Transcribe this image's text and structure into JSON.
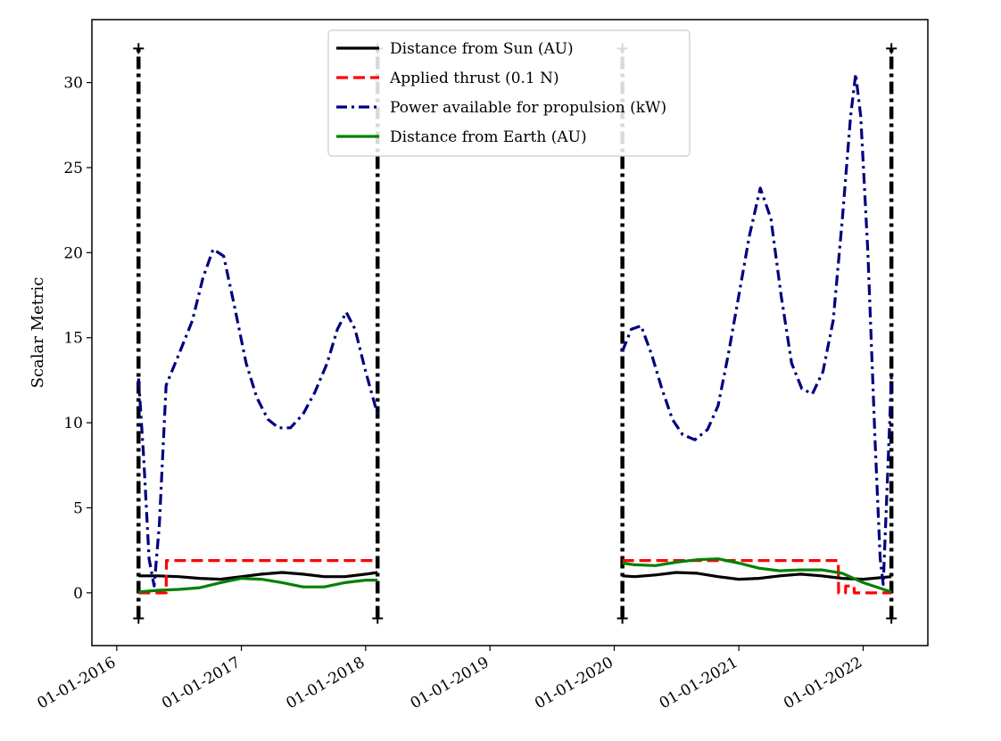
{
  "chart_data": {
    "type": "line",
    "ylabel": "Scalar Metric",
    "xlabel": "",
    "title": "",
    "grid": false,
    "legend_position": "top-center",
    "x_axis": {
      "type": "date",
      "range": [
        "2015-10-20",
        "2022-07-10"
      ],
      "ticks": [
        "2016-01-01",
        "2017-01-01",
        "2018-01-01",
        "2019-01-01",
        "2020-01-01",
        "2021-01-01",
        "2022-01-01"
      ],
      "tick_labels": [
        "01-01-2016",
        "01-01-2017",
        "01-01-2018",
        "01-01-2019",
        "01-01-2020",
        "01-01-2021",
        "01-01-2022"
      ]
    },
    "y_axis": {
      "range": [
        -3.1,
        33.7
      ],
      "ticks": [
        0,
        5,
        10,
        15,
        20,
        25,
        30
      ],
      "tick_labels": [
        "0",
        "5",
        "10",
        "15",
        "20",
        "25",
        "30"
      ]
    },
    "series": [
      {
        "name": "Distance from Sun (AU)",
        "color": "#000000",
        "style": "solid",
        "segments": [
          [
            [
              "2016-03-05",
              1.0
            ],
            [
              "2016-05-01",
              1.0
            ],
            [
              "2016-07-01",
              0.95
            ],
            [
              "2016-09-01",
              0.85
            ],
            [
              "2016-11-01",
              0.8
            ],
            [
              "2017-01-01",
              0.95
            ],
            [
              "2017-03-01",
              1.1
            ],
            [
              "2017-05-01",
              1.2
            ],
            [
              "2017-07-01",
              1.1
            ],
            [
              "2017-09-01",
              0.95
            ],
            [
              "2017-11-01",
              0.95
            ],
            [
              "2018-01-01",
              1.1
            ],
            [
              "2018-02-05",
              1.2
            ]
          ],
          [
            [
              "2020-01-25",
              1.0
            ],
            [
              "2020-03-01",
              0.95
            ],
            [
              "2020-05-01",
              1.05
            ],
            [
              "2020-07-01",
              1.2
            ],
            [
              "2020-09-01",
              1.15
            ],
            [
              "2020-11-01",
              0.95
            ],
            [
              "2021-01-01",
              0.8
            ],
            [
              "2021-03-01",
              0.85
            ],
            [
              "2021-05-01",
              1.0
            ],
            [
              "2021-07-01",
              1.1
            ],
            [
              "2021-09-01",
              1.0
            ],
            [
              "2021-11-01",
              0.85
            ],
            [
              "2022-01-01",
              0.8
            ],
            [
              "2022-03-25",
              0.95
            ]
          ]
        ]
      },
      {
        "name": "Applied thrust (0.1 N)",
        "color": "#ff0000",
        "style": "dashed",
        "segments": [
          [
            [
              "2016-03-05",
              0.0
            ],
            [
              "2016-05-25",
              0.0
            ],
            [
              "2016-05-26",
              1.9
            ],
            [
              "2018-02-05",
              1.9
            ]
          ],
          [
            [
              "2020-01-25",
              1.9
            ],
            [
              "2021-10-20",
              1.9
            ],
            [
              "2021-10-21",
              0.0
            ],
            [
              "2021-11-10",
              0.0
            ],
            [
              "2021-11-11",
              0.4
            ],
            [
              "2021-12-05",
              0.4
            ],
            [
              "2021-12-06",
              0.0
            ],
            [
              "2022-03-25",
              0.0
            ]
          ]
        ]
      },
      {
        "name": "Power available for propulsion (kW)",
        "color": "#000080",
        "style": "dashdot",
        "segments": [
          [
            [
              "2016-03-05",
              12.6
            ],
            [
              "2016-03-20",
              8.0
            ],
            [
              "2016-04-05",
              2.0
            ],
            [
              "2016-04-20",
              0.4
            ],
            [
              "2016-05-05",
              4.0
            ],
            [
              "2016-05-25",
              12.2
            ],
            [
              "2016-07-01",
              14.0
            ],
            [
              "2016-08-10",
              16.0
            ],
            [
              "2016-09-10",
              18.5
            ],
            [
              "2016-10-10",
              20.2
            ],
            [
              "2016-11-10",
              19.8
            ],
            [
              "2016-12-10",
              17.0
            ],
            [
              "2017-01-15",
              13.5
            ],
            [
              "2017-02-15",
              11.5
            ],
            [
              "2017-03-20",
              10.2
            ],
            [
              "2017-04-20",
              9.7
            ],
            [
              "2017-05-25",
              9.7
            ],
            [
              "2017-07-01",
              10.5
            ],
            [
              "2017-08-05",
              11.8
            ],
            [
              "2017-09-10",
              13.5
            ],
            [
              "2017-10-10",
              15.5
            ],
            [
              "2017-11-05",
              16.5
            ],
            [
              "2017-12-01",
              15.5
            ],
            [
              "2018-01-01",
              13.0
            ],
            [
              "2018-02-05",
              10.5
            ]
          ],
          [
            [
              "2020-01-25",
              14.2
            ],
            [
              "2020-02-20",
              15.5
            ],
            [
              "2020-03-20",
              15.7
            ],
            [
              "2020-04-20",
              14.0
            ],
            [
              "2020-05-20",
              12.0
            ],
            [
              "2020-06-20",
              10.2
            ],
            [
              "2020-07-20",
              9.3
            ],
            [
              "2020-08-25",
              9.0
            ],
            [
              "2020-10-01",
              9.6
            ],
            [
              "2020-11-01",
              11.0
            ],
            [
              "2020-12-01",
              14.0
            ],
            [
              "2021-01-01",
              17.5
            ],
            [
              "2021-02-01",
              21.0
            ],
            [
              "2021-03-05",
              23.8
            ],
            [
              "2021-04-05",
              22.0
            ],
            [
              "2021-05-05",
              17.5
            ],
            [
              "2021-06-05",
              13.5
            ],
            [
              "2021-07-05",
              12.0
            ],
            [
              "2021-08-05",
              11.7
            ],
            [
              "2021-09-05",
              13.0
            ],
            [
              "2021-10-05",
              16.0
            ],
            [
              "2021-11-01",
              22.0
            ],
            [
              "2021-11-25",
              28.0
            ],
            [
              "2021-12-10",
              30.5
            ],
            [
              "2021-12-25",
              28.0
            ],
            [
              "2022-01-15",
              20.0
            ],
            [
              "2022-02-05",
              9.0
            ],
            [
              "2022-02-20",
              2.0
            ],
            [
              "2022-03-01",
              0.5
            ],
            [
              "2022-03-12",
              6.0
            ],
            [
              "2022-03-25",
              12.7
            ]
          ]
        ]
      },
      {
        "name": "Distance from Earth (AU)",
        "color": "#008000",
        "style": "solid",
        "segments": [
          [
            [
              "2016-03-05",
              0.05
            ],
            [
              "2016-05-01",
              0.15
            ],
            [
              "2016-07-01",
              0.2
            ],
            [
              "2016-09-01",
              0.3
            ],
            [
              "2016-11-01",
              0.6
            ],
            [
              "2017-01-01",
              0.85
            ],
            [
              "2017-03-01",
              0.8
            ],
            [
              "2017-05-01",
              0.6
            ],
            [
              "2017-07-01",
              0.35
            ],
            [
              "2017-09-01",
              0.35
            ],
            [
              "2017-11-01",
              0.6
            ],
            [
              "2018-01-01",
              0.75
            ],
            [
              "2018-02-05",
              0.75
            ]
          ],
          [
            [
              "2020-01-25",
              1.75
            ],
            [
              "2020-03-01",
              1.65
            ],
            [
              "2020-05-01",
              1.6
            ],
            [
              "2020-07-01",
              1.8
            ],
            [
              "2020-09-01",
              1.95
            ],
            [
              "2020-11-01",
              2.0
            ],
            [
              "2021-01-01",
              1.75
            ],
            [
              "2021-03-01",
              1.45
            ],
            [
              "2021-05-01",
              1.3
            ],
            [
              "2021-07-01",
              1.35
            ],
            [
              "2021-09-01",
              1.35
            ],
            [
              "2021-11-01",
              1.15
            ],
            [
              "2022-01-01",
              0.6
            ],
            [
              "2022-03-25",
              0.05
            ]
          ]
        ]
      }
    ],
    "vertical_markers": [
      {
        "x": "2016-03-05",
        "ymin": -1.5,
        "ymax": 32.0,
        "color": "#000000",
        "style": "dashdot"
      },
      {
        "x": "2018-02-05",
        "ymin": -1.5,
        "ymax": 32.0,
        "color": "#000000",
        "style": "dashdot"
      },
      {
        "x": "2020-01-25",
        "ymin": -1.5,
        "ymax": 32.0,
        "color": "#000000",
        "style": "dashdot"
      },
      {
        "x": "2022-03-25",
        "ymin": -1.5,
        "ymax": 32.0,
        "color": "#000000",
        "style": "dashdot"
      }
    ]
  }
}
